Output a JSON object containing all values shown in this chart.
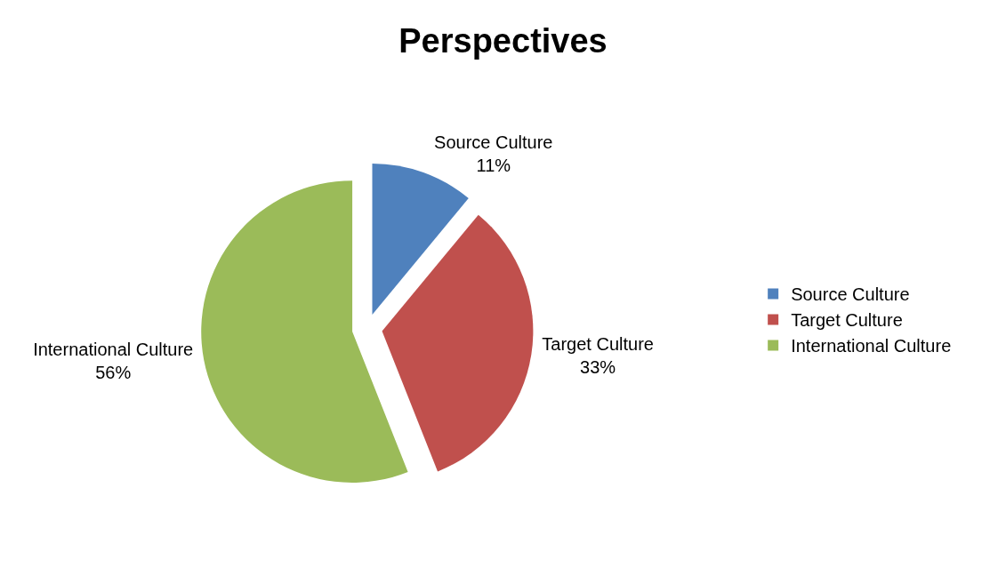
{
  "chart_data": {
    "type": "pie",
    "title": "Perspectives",
    "categories": [
      "Source Culture",
      "Target Culture",
      "International Culture"
    ],
    "values": [
      11,
      33,
      56
    ],
    "value_labels": [
      "11%",
      "33%",
      "56%"
    ],
    "colors": [
      "#4f81bd",
      "#c0504d",
      "#9bbb59"
    ],
    "legend": "right"
  }
}
